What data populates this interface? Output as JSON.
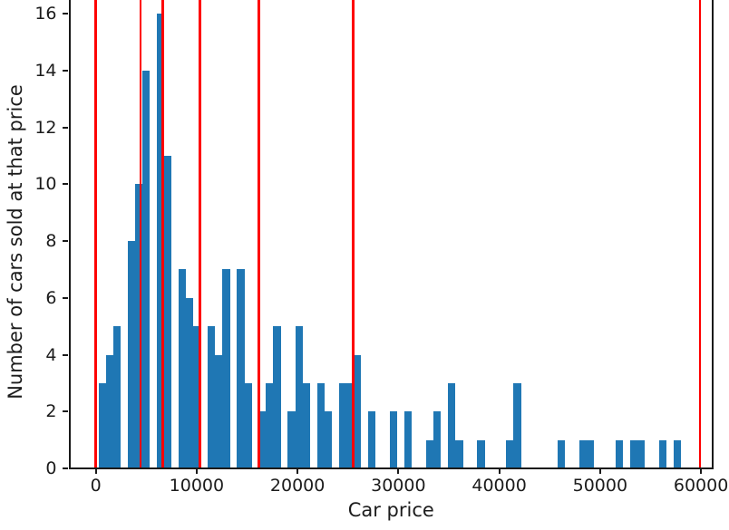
{
  "chart_data": {
    "type": "bar",
    "subtype": "histogram",
    "title": "",
    "xlabel": "Car price",
    "ylabel": "Number of cars sold at that price",
    "x_tick_labels": [
      "0",
      "10000",
      "20000",
      "30000",
      "40000",
      "50000",
      "60000"
    ],
    "x_tick_values": [
      0,
      10000,
      20000,
      30000,
      40000,
      50000,
      60000
    ],
    "y_tick_labels": [
      "0",
      "2",
      "4",
      "6",
      "8",
      "10",
      "12",
      "14",
      "16"
    ],
    "y_tick_values": [
      0,
      2,
      4,
      6,
      8,
      10,
      12,
      14,
      16
    ],
    "xlim": [
      -2620,
      61160
    ],
    "ylim": [
      0,
      16.48
    ],
    "grid": false,
    "legend": null,
    "histogram": {
      "bin_start": 270,
      "bin_width": 722,
      "bin_counts": [
        3,
        4,
        5,
        0,
        8,
        10,
        14,
        0,
        16,
        11,
        0,
        7,
        6,
        5,
        0,
        5,
        4,
        7,
        0,
        7,
        3,
        0,
        2,
        3,
        5,
        0,
        2,
        5,
        3,
        0,
        3,
        2,
        0,
        3,
        3,
        4,
        0,
        2,
        0,
        0,
        2,
        0,
        2,
        0,
        0,
        1,
        2,
        0,
        3,
        1,
        0,
        0,
        1,
        0,
        0,
        0,
        1,
        3,
        0,
        0,
        0,
        0,
        0,
        1,
        0,
        0,
        1,
        1,
        0,
        0,
        0,
        1,
        0,
        1,
        1,
        0,
        0,
        1,
        0,
        1
      ],
      "total_count": 176
    },
    "vlines": [
      0,
      4450,
      6650,
      10300,
      16150,
      25500,
      59900
    ],
    "colors": {
      "bar": "#1f77b4",
      "vline": "#fe0000",
      "axis": "#1a1a1a",
      "text": "#1c1c1c",
      "background": "#ffffff"
    }
  }
}
